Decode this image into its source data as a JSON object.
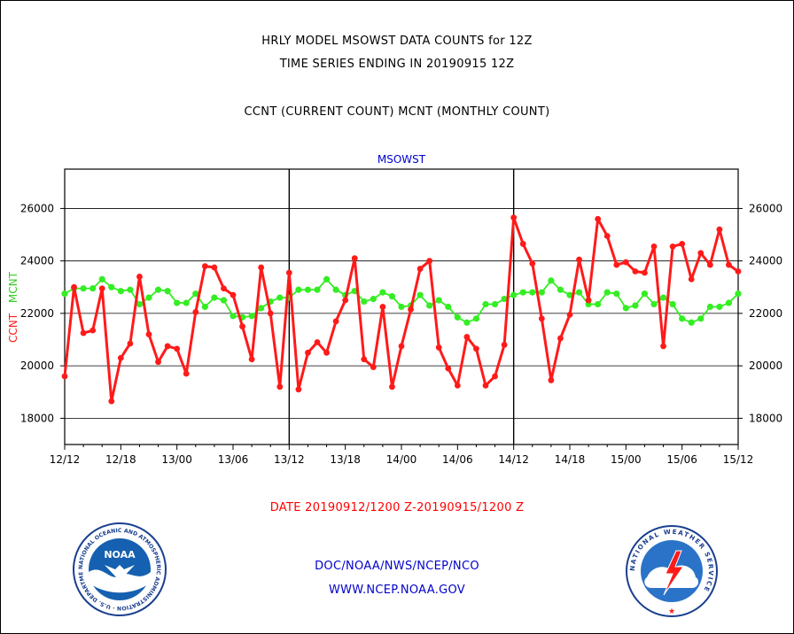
{
  "titles": {
    "line1": "HRLY MODEL MSOWST DATA COUNTS for 12Z",
    "line2": "TIME SERIES ENDING IN 20190915 12Z",
    "line3": "CCNT (CURRENT COUNT) MCNT (MONTHLY COUNT)"
  },
  "footer": {
    "date_range": "DATE 20190912/1200 Z-20190915/1200 Z",
    "org": "DOC/NOAA/NWS/NCEP/NCO",
    "url": "WWW.NCEP.NOAA.GOV"
  },
  "logos": {
    "noaa": {
      "center_text": "NOAA",
      "ring_text": "NATIONAL OCEANIC AND ATMOSPHERIC ADMINISTRATION · U.S. DEPARTMENT OF COMMERCE"
    },
    "nws": {
      "ring_text": "NATIONAL WEATHER SERVICE"
    }
  },
  "colors": {
    "ccnt": "#ff1a1a",
    "mcnt": "#33ee22",
    "title": "#0000cc",
    "footer_red": "#ff0000",
    "footer_blue": "#0000cc"
  },
  "chart_data": {
    "type": "line",
    "title": "MSOWST",
    "ylabel_left": "CCNT",
    "ylabel_right": "MCNT",
    "ylim": [
      17000,
      27500
    ],
    "yticks": [
      18000,
      20000,
      22000,
      24000,
      26000
    ],
    "ytick_labels": [
      "18000",
      "20000",
      "22000",
      "24000",
      "26000"
    ],
    "xlim": [
      0,
      72
    ],
    "xticks": [
      0,
      6,
      12,
      18,
      24,
      30,
      36,
      42,
      48,
      54,
      60,
      66,
      72
    ],
    "xtick_labels": [
      "12/12",
      "12/18",
      "13/00",
      "13/06",
      "13/12",
      "13/18",
      "14/00",
      "14/06",
      "14/12",
      "14/18",
      "15/00",
      "15/06",
      "15/12"
    ],
    "day_dividers": [
      24,
      48
    ],
    "grid": true,
    "series": [
      {
        "name": "CCNT",
        "color": "#ff1a1a",
        "values": [
          19600,
          23000,
          21250,
          21350,
          22950,
          18650,
          20300,
          20850,
          23400,
          21200,
          20150,
          20750,
          20650,
          19700,
          22050,
          23800,
          23750,
          22950,
          22700,
          21500,
          20250,
          23750,
          22000,
          19200,
          23550,
          19100,
          20500,
          20900,
          20500,
          21700,
          22500,
          24100,
          20250,
          19950,
          22250,
          19200,
          20750,
          22150,
          23700,
          24000,
          20700,
          19900,
          19250,
          21100,
          20650,
          19250,
          19600,
          20800,
          25650,
          24650,
          23900,
          21800,
          19450,
          21050,
          21950,
          24050,
          22500,
          25600,
          24950,
          23850,
          23950,
          23600,
          23550,
          24550,
          20750,
          24550,
          24650,
          23300,
          24300,
          23850,
          25200,
          23850,
          23600
        ]
      },
      {
        "name": "MCNT",
        "color": "#33ee22",
        "values": [
          22750,
          22950,
          22950,
          22950,
          23300,
          23000,
          22850,
          22900,
          22350,
          22600,
          22900,
          22850,
          22400,
          22400,
          22750,
          22250,
          22600,
          22500,
          21900,
          21850,
          21900,
          22200,
          22450,
          22600,
          22600,
          22900,
          22900,
          22900,
          23300,
          22900,
          22700,
          22850,
          22450,
          22550,
          22800,
          22650,
          22250,
          22300,
          22700,
          22300,
          22500,
          22250,
          21850,
          21650,
          21800,
          22350,
          22350,
          22550,
          22700,
          22800,
          22800,
          22800,
          23250,
          22900,
          22700,
          22800,
          22350,
          22350,
          22800,
          22750,
          22200,
          22300,
          22750,
          22350,
          22600,
          22350,
          21800,
          21650,
          21800,
          22250,
          22250,
          22400,
          22750
        ]
      }
    ]
  }
}
